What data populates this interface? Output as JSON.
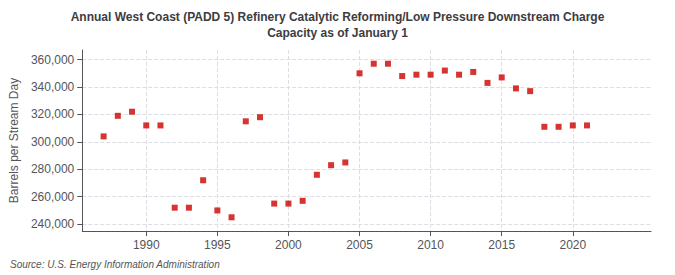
{
  "chart_data": {
    "type": "scatter",
    "title": "Annual West Coast (PADD 5) Refinery Catalytic Reforming/Low Pressure Downstream Charge\nCapacity as of January 1",
    "ylabel": "Barrels per Stream Day",
    "source": "Source: U.S. Energy Information Administration",
    "color": "#cc0000",
    "marker": "square",
    "grid": true,
    "x": [
      1987,
      1988,
      1989,
      1990,
      1991,
      1992,
      1993,
      1994,
      1995,
      1996,
      1997,
      1998,
      1999,
      2000,
      2001,
      2002,
      2003,
      2004,
      2005,
      2006,
      2007,
      2008,
      2009,
      2010,
      2011,
      2012,
      2013,
      2014,
      2015,
      2016,
      2017,
      2018,
      2019,
      2020,
      2021
    ],
    "values": [
      304000,
      319000,
      322000,
      312000,
      312000,
      252000,
      252000,
      272000,
      250000,
      245000,
      315000,
      318000,
      255000,
      255000,
      257000,
      276000,
      283000,
      285000,
      350000,
      357000,
      357000,
      348000,
      349000,
      349000,
      352000,
      349000,
      351000,
      343000,
      347000,
      339000,
      337000,
      311000,
      311000,
      312000,
      312000
    ],
    "xlim": [
      1985.5,
      2025.5
    ],
    "xticks": [
      1990,
      1995,
      2000,
      2005,
      2010,
      2015,
      2020
    ],
    "ylim": [
      235000,
      367000
    ],
    "yticks": [
      {
        "value": 240000,
        "label": "240,000"
      },
      {
        "value": 260000,
        "label": "260,000"
      },
      {
        "value": 280000,
        "label": "280,000"
      },
      {
        "value": 300000,
        "label": "300,000"
      },
      {
        "value": 320000,
        "label": "320,000"
      },
      {
        "value": 340000,
        "label": "340,000"
      },
      {
        "value": 360000,
        "label": "360,000"
      }
    ]
  }
}
